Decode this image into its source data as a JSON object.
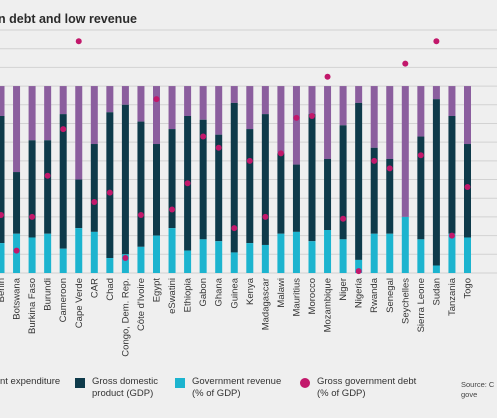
{
  "chart_data": {
    "type": "bar",
    "title": "n debt and low revenue",
    "categories": [
      "Benin",
      "Botswana",
      "Burkina Faso",
      "Burundi",
      "Cameroon",
      "Cape Verde",
      "CAR",
      "Chad",
      "Congo, Dem. Rep.",
      "Côte d'Ivoire",
      "Egypt",
      "eSwatini",
      "Ethiopia",
      "Gabon",
      "Ghana",
      "Guinea",
      "Kenya",
      "Madagascar",
      "Malawi",
      "Mauritius",
      "Morocco",
      "Mozambique",
      "Niger",
      "Nigeria",
      "Rwanda",
      "Senegal",
      "Seychelles",
      "Sierra Leone",
      "Sudan",
      "Tanzania",
      "Togo"
    ],
    "ylim": [
      0,
      130
    ],
    "grid": true,
    "series": [
      {
        "name": "Government expenditure",
        "color": "#8b5e9e",
        "values": [
          100,
          100,
          100,
          100,
          100,
          100,
          100,
          100,
          100,
          100,
          100,
          100,
          100,
          100,
          100,
          100,
          100,
          100,
          100,
          100,
          100,
          100,
          100,
          100,
          100,
          100,
          100,
          100,
          100,
          100,
          100
        ]
      },
      {
        "name": "Gross domestic product (GDP)",
        "color": "#0e3a4a",
        "values": [
          84,
          54,
          71,
          71,
          85,
          50,
          69,
          86,
          90,
          81,
          69,
          77,
          84,
          82,
          74,
          91,
          77,
          85,
          64,
          58,
          85,
          61,
          79,
          91,
          67,
          61,
          30,
          73,
          93,
          84,
          69
        ]
      },
      {
        "name": "Government revenue (% of GDP)",
        "color": "#1cb4cf",
        "values": [
          16,
          21,
          19,
          21,
          13,
          24,
          22,
          8,
          10,
          14,
          20,
          24,
          12,
          18,
          17,
          11,
          16,
          15,
          21,
          22,
          17,
          23,
          18,
          7,
          21,
          21,
          30,
          18,
          4,
          21,
          19
        ]
      },
      {
        "name": "Gross government debt (% of GDP)",
        "color": "#c2186b",
        "values": [
          31,
          12,
          30,
          52,
          77,
          124,
          38,
          43,
          8,
          31,
          93,
          34,
          48,
          73,
          67,
          24,
          60,
          30,
          64,
          83,
          84,
          105,
          29,
          1,
          60,
          56,
          112,
          63,
          124,
          20,
          46
        ]
      }
    ]
  },
  "legend": {
    "items": [
      {
        "label": "nt expenditure",
        "color": "#8b5e9e"
      },
      {
        "label": "Gross domestic\nproduct (GDP)",
        "color": "#0e3a4a"
      },
      {
        "label": "Government revenue\n(% of GDP)",
        "color": "#1cb4cf"
      },
      {
        "label": "Gross government debt\n(% of GDP)",
        "color": "#c2186b"
      }
    ]
  },
  "source": "Source: C\ngove"
}
